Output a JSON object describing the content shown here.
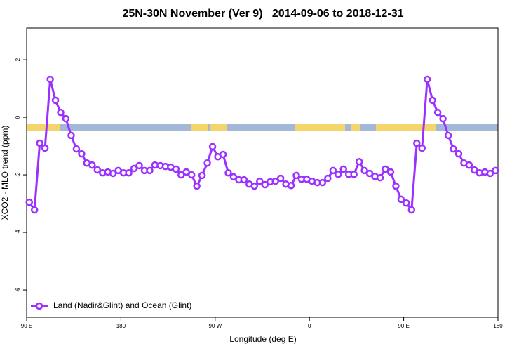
{
  "chart_data": {
    "type": "line",
    "title": "25N-30N November (Ver 9)   2014-09-06 to 2018-12-31",
    "xlabel": "Longitude (deg E)",
    "ylabel": "XCO2 - MLO trend (ppm)",
    "xlim": [
      90,
      540
    ],
    "ylim": [
      -6.95,
      3.1
    ],
    "xticks": [
      {
        "value": 90,
        "label": "90 E"
      },
      {
        "value": 180,
        "label": "180"
      },
      {
        "value": 270,
        "label": "90 W"
      },
      {
        "value": 360,
        "label": "0"
      },
      {
        "value": 450,
        "label": "90 E"
      },
      {
        "value": 540,
        "label": "180"
      }
    ],
    "yticks": [
      -6,
      -4,
      -2,
      0,
      2
    ],
    "legend": "bottomleft",
    "x": [
      92.5,
      97.5,
      102.5,
      107.5,
      112.5,
      117.5,
      122.5,
      127.5,
      132.5,
      137.5,
      142.5,
      147.5,
      152.5,
      157.5,
      162.5,
      167.5,
      172.5,
      177.5,
      182.5,
      187.5,
      192.5,
      197.5,
      202.5,
      207.5,
      212.5,
      217.5,
      222.5,
      227.5,
      232.5,
      237.5,
      242.5,
      247.5,
      252.5,
      257.5,
      262.5,
      267.5,
      272.5,
      277.5,
      282.5,
      287.5,
      292.5,
      297.5,
      302.5,
      307.5,
      312.5,
      317.5,
      322.5,
      327.5,
      332.5,
      337.5,
      342.5,
      347.5,
      352.5,
      357.5,
      362.5,
      367.5,
      372.5,
      377.5,
      382.5,
      387.5,
      392.5,
      397.5,
      402.5,
      407.5,
      412.5,
      417.5,
      422.5,
      427.5,
      432.5,
      437.5,
      442.5,
      447.5,
      452.5,
      457.5,
      462.5,
      467.5,
      472.5,
      477.5,
      482.5,
      487.5,
      492.5,
      497.5,
      502.5,
      507.5,
      512.5,
      517.5,
      522.5,
      527.5,
      532.5,
      537.5
    ],
    "series": [
      {
        "name": "Land (Nadir&Glint) and Ocean (Glint)",
        "color": "#9b30ff",
        "values": [
          -2.95,
          -3.22,
          -0.9,
          -1.07,
          1.32,
          0.59,
          0.17,
          -0.05,
          -0.63,
          -1.1,
          -1.27,
          -1.59,
          -1.66,
          -1.83,
          -1.93,
          -1.9,
          -1.95,
          -1.85,
          -1.93,
          -1.93,
          -1.78,
          -1.68,
          -1.85,
          -1.85,
          -1.66,
          -1.68,
          -1.71,
          -1.73,
          -1.8,
          -2.0,
          -1.9,
          -2.0,
          -2.39,
          -2.02,
          -1.59,
          -1.02,
          -1.37,
          -1.29,
          -1.93,
          -2.07,
          -2.17,
          -2.17,
          -2.32,
          -2.39,
          -2.22,
          -2.34,
          -2.24,
          -2.22,
          -2.12,
          -2.32,
          -2.37,
          -2.02,
          -2.15,
          -2.15,
          -2.22,
          -2.27,
          -2.27,
          -2.12,
          -1.85,
          -1.98,
          -1.8,
          -1.98,
          -1.98,
          -1.54,
          -1.85,
          -1.95,
          -2.05,
          -2.1,
          -1.8,
          -1.9,
          -2.39,
          -2.85,
          -2.98,
          -3.22,
          -0.9,
          -1.07,
          1.32,
          0.59,
          0.17,
          -0.05,
          -0.63,
          -1.1,
          -1.27,
          -1.59,
          -1.66,
          -1.83,
          -1.93,
          -1.9,
          -1.95,
          -1.85
        ]
      }
    ]
  }
}
